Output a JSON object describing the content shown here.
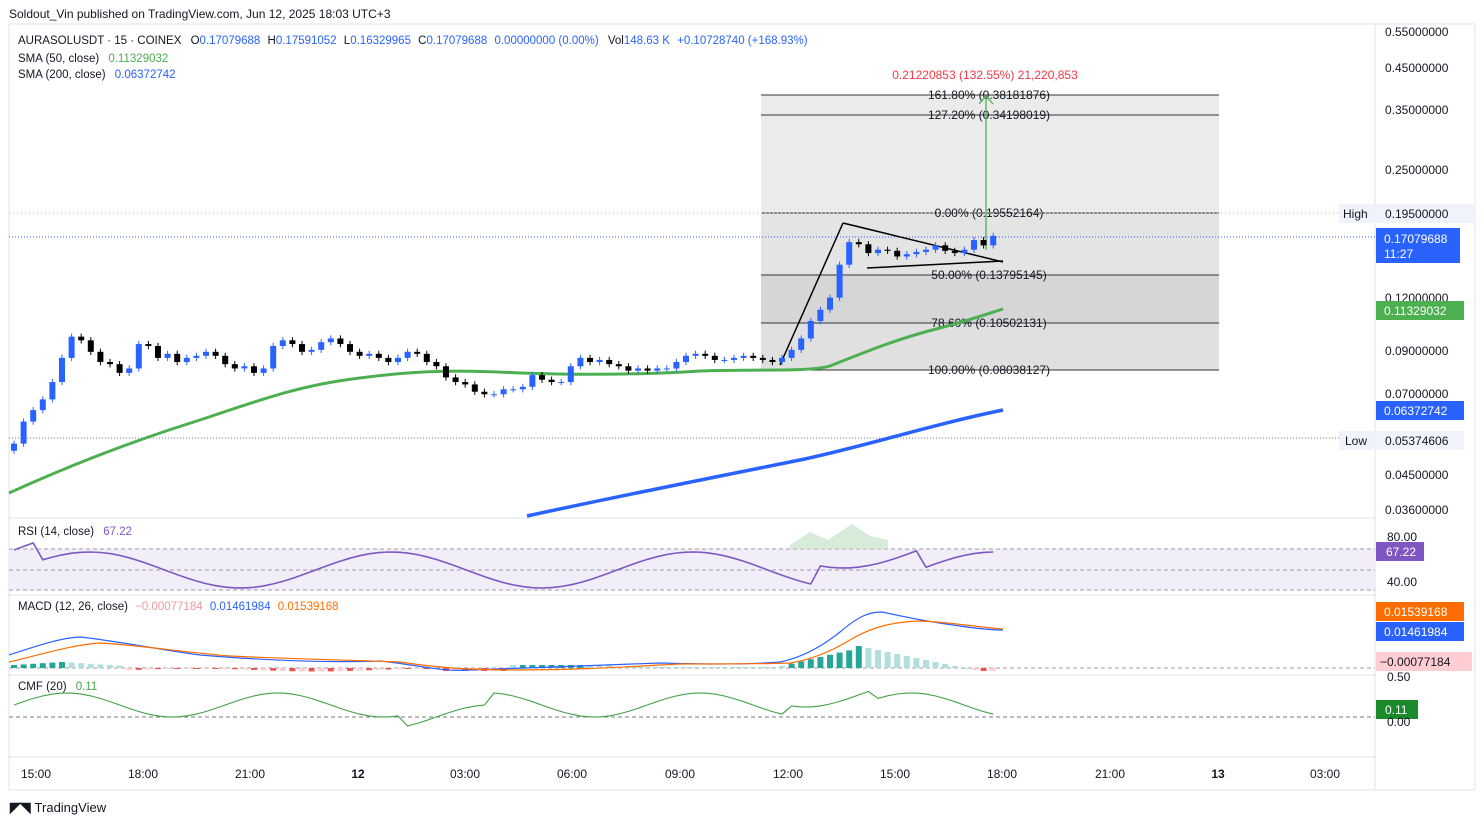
{
  "header": {
    "published": "Soldout_Vin published on TradingView.com, Jun 12, 2025 18:03 UTC+3"
  },
  "symbol_legend": {
    "symbol": "AURASOLUSDT · 15 · COINEX",
    "ohlc": [
      {
        "k": "O",
        "v": "0.17079688"
      },
      {
        "k": "H",
        "v": "0.17591052"
      },
      {
        "k": "L",
        "v": "0.16329965"
      },
      {
        "k": "C",
        "v": "0.17079688"
      }
    ],
    "change": "0.00000000 (0.00%)",
    "vol_label": "Vol",
    "vol_value": "148.63 K",
    "vol_change": "+0.10728740 (+168.93%)"
  },
  "indicators": {
    "sma50": {
      "label": "SMA (50, close)",
      "value": "0.11329032",
      "color": "#4caf50"
    },
    "sma200": {
      "label": "SMA (200, close)",
      "value": "0.06372742",
      "color": "#2962ff"
    },
    "rsi": {
      "label": "RSI (14, close)",
      "value": "67.22",
      "color": "#7e57c2"
    },
    "macd": {
      "label": "MACD (12, 26, close)",
      "hist": "−0.00077184",
      "macd": "0.01461984",
      "signal": "0.01539168"
    },
    "cmf": {
      "label": "CMF (20)",
      "value": "0.11",
      "color": "#43a047"
    }
  },
  "price_axis": {
    "labels": [
      "0.55000000",
      "0.45000000",
      "0.35000000",
      "0.25000000",
      "0.19500000",
      "0.12000000",
      "0.09000000",
      "0.07000000",
      "0.04500000",
      "0.03600000"
    ],
    "high_label": "High",
    "high_value": "0.19500000",
    "low_label": "Low",
    "low_value": "0.05374606",
    "last_price": "0.17079688",
    "countdown": "11:27",
    "sma50_tag": "0.11329032",
    "sma200_tag": "0.06372742"
  },
  "rsi_axis": {
    "top": "80.00",
    "bottom": "40.00",
    "value": "67.22"
  },
  "macd_axis": {
    "signal": "0.01539168",
    "macd": "0.01461984",
    "hist": "−0.00077184"
  },
  "cmf_axis": {
    "top": "0.50",
    "bottom": "0.00",
    "value": "0.11"
  },
  "time_axis": [
    "15:00",
    "18:00",
    "21:00",
    "12",
    "03:00",
    "06:00",
    "09:00",
    "12:00",
    "15:00",
    "18:00",
    "21:00",
    "13",
    "03:00"
  ],
  "fib": {
    "levels": [
      {
        "label": "161.80% (0.38181876)"
      },
      {
        "label": "127.20% (0.34198019)"
      },
      {
        "label": "0.00% (0.19552164)"
      },
      {
        "label": "50.00% (0.13795145)"
      },
      {
        "label": "78.60% (0.10502131)"
      },
      {
        "label": "100.00% (0.08038127)"
      }
    ],
    "target": "0.21220853 (132.55%) 21,220,853",
    "target_color": "#f23645"
  },
  "footer": {
    "logo": "TradingView"
  },
  "chart_data": {
    "type": "candlestick",
    "symbol": "AURASOLUSDT",
    "interval": "15",
    "y_scale": "log",
    "x": "time (Jun 11 14:30 – Jun 12 18:00, 15-min bars)",
    "closes": [
      0.052,
      0.059,
      0.063,
      0.067,
      0.074,
      0.085,
      0.096,
      0.094,
      0.088,
      0.083,
      0.082,
      0.078,
      0.08,
      0.092,
      0.091,
      0.085,
      0.087,
      0.083,
      0.085,
      0.086,
      0.088,
      0.086,
      0.082,
      0.08,
      0.081,
      0.078,
      0.08,
      0.091,
      0.094,
      0.092,
      0.088,
      0.089,
      0.093,
      0.095,
      0.092,
      0.088,
      0.086,
      0.087,
      0.085,
      0.083,
      0.085,
      0.088,
      0.087,
      0.083,
      0.081,
      0.076,
      0.074,
      0.073,
      0.07,
      0.069,
      0.069,
      0.071,
      0.071,
      0.072,
      0.077,
      0.075,
      0.074,
      0.074,
      0.081,
      0.085,
      0.083,
      0.084,
      0.082,
      0.081,
      0.079,
      0.08,
      0.079,
      0.08,
      0.08,
      0.083,
      0.086,
      0.087,
      0.086,
      0.084,
      0.084,
      0.085,
      0.086,
      0.085,
      0.084,
      0.083,
      0.085,
      0.089,
      0.095,
      0.105,
      0.112,
      0.12,
      0.145,
      0.165,
      0.163,
      0.155,
      0.158,
      0.157,
      0.152,
      0.154,
      0.156,
      0.158,
      0.162,
      0.157,
      0.155,
      0.158,
      0.167,
      0.162,
      0.171
    ]
  }
}
